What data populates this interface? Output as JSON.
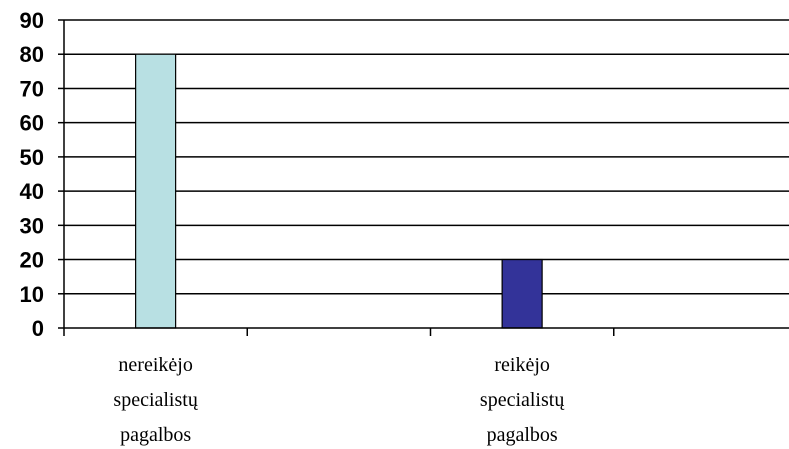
{
  "chart_data": {
    "type": "bar",
    "categories": [
      [
        "nereikėjo",
        "specialistų",
        "pagalbos"
      ],
      [
        "",
        "",
        ""
      ],
      [
        "reikėjo",
        "specialistų",
        "pagalbos"
      ],
      [
        "",
        "",
        ""
      ]
    ],
    "values": [
      80,
      null,
      20,
      null
    ],
    "bar_colors": [
      "#b8e0e3",
      null,
      "#333399"
    ],
    "y_ticks": [
      "0",
      "10",
      "20",
      "30",
      "40",
      "50",
      "60",
      "70",
      "80",
      "90"
    ],
    "ylim": [
      0,
      90
    ],
    "grid": true,
    "title": "",
    "xlabel": "",
    "ylabel": ""
  }
}
